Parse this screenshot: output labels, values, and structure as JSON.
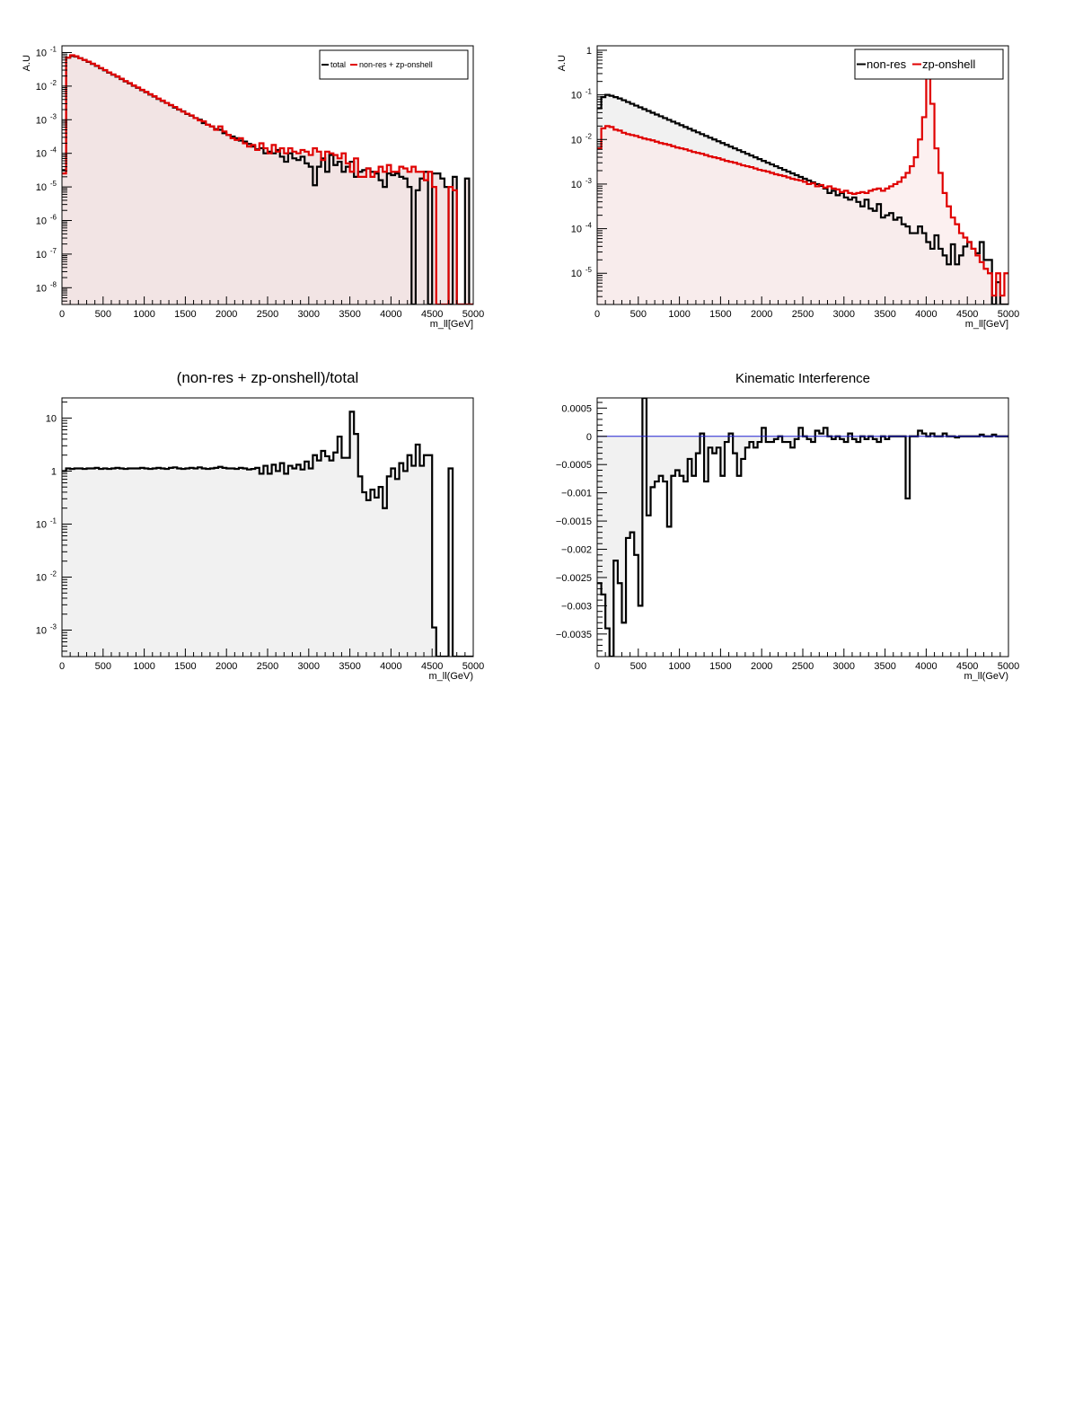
{
  "colors": {
    "black": "#000000",
    "red": "#e00000",
    "blue": "#1f1fd0",
    "fill_red": "#f2e4e4",
    "fill_grey": "#f1f1f1"
  },
  "chart_data": [
    {
      "id": "total-vs-sum",
      "type": "step-histogram",
      "title": "",
      "xlabel": "m_ll[GeV]",
      "ylabel": "A.U",
      "xlim": [
        0,
        5000
      ],
      "ylog": true,
      "ylim_exp": [
        -8.5,
        -0.8
      ],
      "xticks": [
        "0",
        "500",
        "1000",
        "1500",
        "2000",
        "2500",
        "3000",
        "3500",
        "4000",
        "4500",
        "5000"
      ],
      "yticks": [
        {
          "base": "10",
          "exp": "-1"
        },
        {
          "base": "10",
          "exp": "-2"
        },
        {
          "base": "10",
          "exp": "-3"
        },
        {
          "base": "10",
          "exp": "-4"
        },
        {
          "base": "10",
          "exp": "-5"
        },
        {
          "base": "10",
          "exp": "-6"
        },
        {
          "base": "10",
          "exp": "-7"
        },
        {
          "base": "10",
          "exp": "-8"
        }
      ],
      "legend": {
        "placement": "top-right",
        "entries": [
          "total",
          "non-res + zp-onshell"
        ]
      },
      "series": [
        {
          "name": "total",
          "color": "black",
          "log10": [
            -4.5,
            -1.15,
            -1.1,
            -1.12,
            -1.17,
            -1.22,
            -1.28,
            -1.34,
            -1.4,
            -1.47,
            -1.53,
            -1.6,
            -1.66,
            -1.72,
            -1.79,
            -1.86,
            -1.92,
            -1.99,
            -2.05,
            -2.12,
            -2.18,
            -2.25,
            -2.31,
            -2.38,
            -2.44,
            -2.5,
            -2.57,
            -2.64,
            -2.7,
            -2.75,
            -2.83,
            -2.88,
            -2.95,
            -3.0,
            -3.1,
            -3.15,
            -3.2,
            -3.28,
            -3.3,
            -3.4,
            -3.45,
            -3.5,
            -3.55,
            -3.62,
            -3.65,
            -3.72,
            -3.8,
            -3.88,
            -3.85,
            -4.0,
            -3.95,
            -4.0,
            -3.9,
            -4.1,
            -4.25,
            -4.0,
            -4.15,
            -4.2,
            -4.1,
            -4.3,
            -4.4,
            -4.95,
            -4.4,
            -4.15,
            -4.55,
            -4.05,
            -4.35,
            -4.25,
            -4.55,
            -4.4,
            -4.25,
            -4.7,
            -4.55,
            -4.5,
            -4.45,
            -4.55,
            -4.6,
            -4.8,
            -5.0,
            -4.6,
            -4.65,
            -4.6,
            -4.7,
            -4.75,
            -5.0,
            -9,
            -5.1,
            -4.75,
            -4.55,
            -9,
            -4.6,
            -4.6,
            -4.75,
            -5.0,
            -9,
            -4.7,
            -9,
            -9,
            -4.75,
            -9
          ]
        },
        {
          "name": "non-res + zp-onshell",
          "color": "red",
          "log10": [
            -4.6,
            -1.15,
            -1.08,
            -1.11,
            -1.17,
            -1.22,
            -1.27,
            -1.33,
            -1.39,
            -1.46,
            -1.52,
            -1.59,
            -1.65,
            -1.71,
            -1.78,
            -1.85,
            -1.91,
            -1.98,
            -2.04,
            -2.11,
            -2.17,
            -2.24,
            -2.3,
            -2.37,
            -2.43,
            -2.5,
            -2.56,
            -2.62,
            -2.69,
            -2.76,
            -2.82,
            -2.87,
            -2.95,
            -3.02,
            -3.05,
            -3.15,
            -3.2,
            -3.3,
            -3.2,
            -3.35,
            -3.45,
            -3.55,
            -3.6,
            -3.55,
            -3.7,
            -3.8,
            -3.75,
            -3.9,
            -3.7,
            -3.85,
            -4.0,
            -3.75,
            -3.95,
            -3.85,
            -4.0,
            -3.85,
            -3.95,
            -4.0,
            -3.9,
            -3.95,
            -4.05,
            -3.85,
            -3.95,
            -4.2,
            -3.95,
            -4.0,
            -4.05,
            -4.15,
            -4.0,
            -4.3,
            -4.55,
            -4.15,
            -4.7,
            -4.7,
            -4.45,
            -4.7,
            -4.55,
            -4.4,
            -4.55,
            -4.35,
            -4.55,
            -4.55,
            -4.4,
            -4.45,
            -4.55,
            -4.4,
            -4.55,
            -4.55,
            -4.8,
            -4.55,
            -5.0,
            -8.5,
            -9,
            -9,
            -5.0,
            -5.1,
            -9,
            -9,
            -9,
            -9
          ]
        }
      ]
    },
    {
      "id": "components",
      "type": "step-histogram",
      "title": "",
      "xlabel": "m_ll[GeV]",
      "ylabel": "A.U",
      "xlim": [
        0,
        5000
      ],
      "ylog": true,
      "ylim_exp": [
        -5.7,
        0.1
      ],
      "xticks": [
        "0",
        "500",
        "1000",
        "1500",
        "2000",
        "2500",
        "3000",
        "3500",
        "4000",
        "4500",
        "5000"
      ],
      "yticks": [
        {
          "base": "1",
          "exp": ""
        },
        {
          "base": "10",
          "exp": "-1"
        },
        {
          "base": "10",
          "exp": "-2"
        },
        {
          "base": "10",
          "exp": "-3"
        },
        {
          "base": "10",
          "exp": "-4"
        },
        {
          "base": "10",
          "exp": "-5"
        }
      ],
      "legend": {
        "placement": "top-right",
        "entries": [
          "non-res",
          "zp-onshell"
        ]
      },
      "series": [
        {
          "name": "non-res",
          "color": "black",
          "log10": [
            -1.3,
            -1.05,
            -1.0,
            -1.02,
            -1.05,
            -1.08,
            -1.12,
            -1.16,
            -1.2,
            -1.24,
            -1.28,
            -1.32,
            -1.36,
            -1.4,
            -1.44,
            -1.48,
            -1.52,
            -1.56,
            -1.6,
            -1.64,
            -1.68,
            -1.72,
            -1.76,
            -1.8,
            -1.84,
            -1.88,
            -1.92,
            -1.96,
            -2.0,
            -2.04,
            -2.08,
            -2.12,
            -2.16,
            -2.2,
            -2.24,
            -2.28,
            -2.32,
            -2.36,
            -2.4,
            -2.44,
            -2.48,
            -2.52,
            -2.56,
            -2.6,
            -2.64,
            -2.68,
            -2.72,
            -2.76,
            -2.8,
            -2.84,
            -2.88,
            -2.92,
            -2.96,
            -3.0,
            -3.04,
            -3.1,
            -3.2,
            -3.15,
            -3.25,
            -3.2,
            -3.3,
            -3.35,
            -3.3,
            -3.4,
            -3.5,
            -3.35,
            -3.55,
            -3.6,
            -3.45,
            -3.75,
            -3.7,
            -3.65,
            -3.8,
            -3.75,
            -3.9,
            -3.95,
            -4.1,
            -4.1,
            -3.95,
            -4.1,
            -4.3,
            -4.45,
            -4.15,
            -4.45,
            -4.6,
            -4.8,
            -4.35,
            -4.8,
            -4.6,
            -4.4,
            -4.3,
            -4.45,
            -4.55,
            -4.3,
            -4.7,
            -4.7,
            -5.8,
            -5.2,
            -5.8,
            -5.8
          ]
        },
        {
          "name": "zp-onshell",
          "color": "red",
          "log10": [
            -2.2,
            -1.75,
            -1.7,
            -1.72,
            -1.78,
            -1.8,
            -1.85,
            -1.88,
            -1.9,
            -1.92,
            -1.95,
            -1.98,
            -2.0,
            -2.02,
            -2.05,
            -2.08,
            -2.1,
            -2.12,
            -2.15,
            -2.18,
            -2.2,
            -2.22,
            -2.25,
            -2.28,
            -2.3,
            -2.32,
            -2.35,
            -2.38,
            -2.4,
            -2.42,
            -2.45,
            -2.48,
            -2.5,
            -2.52,
            -2.55,
            -2.58,
            -2.6,
            -2.62,
            -2.65,
            -2.68,
            -2.7,
            -2.72,
            -2.75,
            -2.78,
            -2.8,
            -2.82,
            -2.85,
            -2.88,
            -2.9,
            -2.92,
            -2.95,
            -3.0,
            -2.98,
            -3.05,
            -3.02,
            -3.08,
            -3.05,
            -3.1,
            -3.12,
            -3.18,
            -3.15,
            -3.2,
            -3.22,
            -3.2,
            -3.18,
            -3.2,
            -3.15,
            -3.12,
            -3.1,
            -3.15,
            -3.1,
            -3.05,
            -3.0,
            -2.95,
            -2.85,
            -2.75,
            -2.6,
            -2.4,
            -2.0,
            -1.5,
            -0.5,
            -1.2,
            -2.2,
            -2.75,
            -3.2,
            -3.5,
            -3.75,
            -3.9,
            -4.1,
            -4.2,
            -4.3,
            -4.45,
            -4.6,
            -4.75,
            -4.9,
            -5.0,
            -5.5,
            -5.0,
            -5.5,
            -5.0
          ]
        }
      ]
    },
    {
      "id": "ratio",
      "type": "step-histogram",
      "title": "(non-res + zp-onshell)/total",
      "xlabel": "m_ll(GeV)",
      "ylabel": "",
      "xlim": [
        0,
        5000
      ],
      "ylog": true,
      "ylim_exp": [
        -3.5,
        1.38
      ],
      "xticks": [
        "0",
        "500",
        "1000",
        "1500",
        "2000",
        "2500",
        "3000",
        "3500",
        "4000",
        "4500",
        "5000"
      ],
      "yticks": [
        {
          "base": "10",
          "exp": ""
        },
        {
          "base": "1",
          "exp": ""
        },
        {
          "base": "10",
          "exp": "-1"
        },
        {
          "base": "10",
          "exp": "-2"
        },
        {
          "base": "10",
          "exp": "-3"
        }
      ],
      "series": [
        {
          "name": "",
          "color": "black",
          "log10": [
            0.0,
            0.05,
            0.04,
            0.05,
            0.05,
            0.04,
            0.05,
            0.05,
            0.06,
            0.04,
            0.05,
            0.04,
            0.05,
            0.06,
            0.05,
            0.04,
            0.05,
            0.05,
            0.05,
            0.06,
            0.05,
            0.04,
            0.05,
            0.06,
            0.05,
            0.04,
            0.06,
            0.07,
            0.05,
            0.04,
            0.05,
            0.06,
            0.05,
            0.07,
            0.05,
            0.04,
            0.05,
            0.06,
            0.08,
            0.06,
            0.05,
            0.05,
            0.04,
            0.06,
            0.05,
            0.03,
            0.04,
            0.06,
            -0.05,
            0.1,
            -0.05,
            0.12,
            0.0,
            0.15,
            -0.05,
            0.1,
            0.05,
            0.12,
            0.03,
            0.18,
            0.05,
            0.3,
            0.2,
            0.38,
            0.28,
            0.2,
            0.35,
            0.65,
            0.25,
            0.25,
            1.12,
            0.7,
            -0.1,
            -0.4,
            -0.55,
            -0.35,
            -0.5,
            -0.3,
            -0.7,
            -0.1,
            0.05,
            -0.15,
            0.15,
            0.0,
            0.3,
            0.1,
            0.5,
            0.1,
            0.3,
            0.3,
            -2.95,
            -4,
            -4,
            -4,
            0.05,
            -4,
            -4,
            -4,
            -4,
            -4
          ]
        }
      ]
    },
    {
      "id": "interference",
      "type": "step-histogram",
      "title": "Kinematic Interference",
      "xlabel": "m_ll(GeV)",
      "ylabel": "",
      "xlim": [
        0,
        5000
      ],
      "ylog": false,
      "ylim": [
        -0.0039,
        0.00068
      ],
      "xticks": [
        "0",
        "500",
        "1000",
        "1500",
        "2000",
        "2500",
        "3000",
        "3500",
        "4000",
        "4500",
        "5000"
      ],
      "yticks": [
        "0.0005",
        "0",
        "−0.0005",
        "−0.001",
        "−0.0015",
        "−0.002",
        "−0.0025",
        "−0.003",
        "−0.0035"
      ],
      "yticks_values": [
        0.0005,
        0,
        -0.0005,
        -0.001,
        -0.0015,
        -0.002,
        -0.0025,
        -0.003,
        -0.0035
      ],
      "reference_line": {
        "y": 0,
        "color": "blue"
      },
      "series": [
        {
          "name": "",
          "color": "black",
          "values": [
            -0.0026,
            -0.0028,
            -0.0034,
            -0.0039,
            -0.0022,
            -0.0026,
            -0.0033,
            -0.0018,
            -0.0017,
            -0.0021,
            -0.003,
            0.0007,
            -0.0014,
            -0.0009,
            -0.0008,
            -0.0007,
            -0.0008,
            -0.0016,
            -0.0007,
            -0.0006,
            -0.0007,
            -0.0008,
            -0.0004,
            -0.0007,
            -0.0003,
            5e-05,
            -0.0008,
            -0.0002,
            -0.0003,
            -0.0002,
            -0.0007,
            -0.0001,
            5e-05,
            -0.0003,
            -0.0007,
            -0.0004,
            -0.0002,
            -0.0001,
            -0.0002,
            -0.0001,
            0.00015,
            -0.0001,
            -0.0001,
            -5e-05,
            0.0,
            -0.0001,
            -0.0001,
            -0.0002,
            -5e-05,
            0.00015,
            0.0,
            -5e-05,
            -0.0001,
            0.0001,
            5e-05,
            0.00015,
            0.0,
            -5e-05,
            0.0,
            -5e-05,
            -0.0001,
            5e-05,
            -5e-05,
            -0.0001,
            0.0,
            -5e-05,
            0.0,
            -5e-05,
            -0.0001,
            0.0,
            -5e-05,
            0.0,
            0.0,
            0.0,
            0.0,
            -0.0011,
            0.0,
            0.0,
            0.0001,
            5e-05,
            0.0,
            5e-05,
            0.0,
            0.0,
            5e-05,
            0.0,
            0.0,
            -2e-05,
            0.0,
            0.0,
            0.0,
            0.0,
            0.0,
            3e-05,
            0.0,
            0.0,
            3e-05,
            0.0,
            0.0,
            0.0
          ]
        }
      ]
    }
  ]
}
